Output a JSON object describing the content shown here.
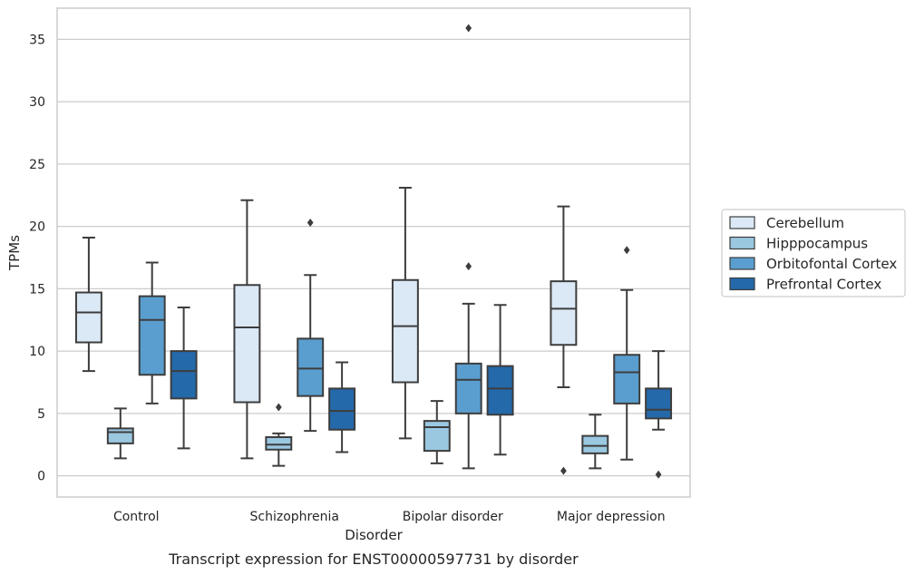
{
  "chart_data": {
    "type": "box",
    "xlabel": "Disorder",
    "ylabel": "TPMs",
    "caption": "Transcript expression for ENST00000597731 by disorder",
    "ylim": [
      -1.7,
      37.5
    ],
    "yticks": [
      0,
      5,
      10,
      15,
      20,
      25,
      30,
      35
    ],
    "grid": "horizontal",
    "legend_position": "right",
    "categories": [
      "Control",
      "Schizophrenia",
      "Bipolar disorder",
      "Major depression"
    ],
    "series": [
      {
        "name": "Cerebellum",
        "color": "#dbe9f6",
        "boxes": [
          {
            "whislo": 8.4,
            "q1": 10.7,
            "med": 13.1,
            "q3": 14.7,
            "whishi": 19.1,
            "fliers": []
          },
          {
            "whislo": 1.4,
            "q1": 5.9,
            "med": 11.9,
            "q3": 15.3,
            "whishi": 22.1,
            "fliers": []
          },
          {
            "whislo": 3.0,
            "q1": 7.5,
            "med": 12.0,
            "q3": 15.7,
            "whishi": 23.1,
            "fliers": []
          },
          {
            "whislo": 7.1,
            "q1": 10.5,
            "med": 13.4,
            "q3": 15.6,
            "whishi": 21.6,
            "fliers": [
              0.4
            ]
          }
        ]
      },
      {
        "name": "Hipppocampus",
        "color": "#9ac8e0",
        "boxes": [
          {
            "whislo": 1.4,
            "q1": 2.6,
            "med": 3.5,
            "q3": 3.8,
            "whishi": 5.4,
            "fliers": []
          },
          {
            "whislo": 0.8,
            "q1": 2.1,
            "med": 2.5,
            "q3": 3.1,
            "whishi": 3.4,
            "fliers": [
              5.5
            ]
          },
          {
            "whislo": 1.0,
            "q1": 2.0,
            "med": 3.9,
            "q3": 4.4,
            "whishi": 6.0,
            "fliers": []
          },
          {
            "whislo": 0.6,
            "q1": 1.8,
            "med": 2.4,
            "q3": 3.2,
            "whishi": 4.9,
            "fliers": []
          }
        ]
      },
      {
        "name": "Orbitofontal Cortex",
        "color": "#5a9ecf",
        "boxes": [
          {
            "whislo": 5.8,
            "q1": 8.1,
            "med": 12.5,
            "q3": 14.4,
            "whishi": 17.1,
            "fliers": []
          },
          {
            "whislo": 3.6,
            "q1": 6.4,
            "med": 8.6,
            "q3": 11.0,
            "whishi": 16.1,
            "fliers": [
              20.3
            ]
          },
          {
            "whislo": 0.6,
            "q1": 5.0,
            "med": 7.7,
            "q3": 9.0,
            "whishi": 13.8,
            "fliers": [
              16.8,
              35.9
            ]
          },
          {
            "whislo": 1.3,
            "q1": 5.8,
            "med": 8.3,
            "q3": 9.7,
            "whishi": 14.9,
            "fliers": [
              18.1
            ]
          }
        ]
      },
      {
        "name": "Prefrontal Cortex",
        "color": "#2469aa",
        "boxes": [
          {
            "whislo": 2.2,
            "q1": 6.2,
            "med": 8.4,
            "q3": 10.0,
            "whishi": 13.5,
            "fliers": []
          },
          {
            "whislo": 1.9,
            "q1": 3.7,
            "med": 5.2,
            "q3": 7.0,
            "whishi": 9.1,
            "fliers": []
          },
          {
            "whislo": 1.7,
            "q1": 4.9,
            "med": 7.0,
            "q3": 8.8,
            "whishi": 13.7,
            "fliers": []
          },
          {
            "whislo": 3.7,
            "q1": 4.6,
            "med": 5.3,
            "q3": 7.0,
            "whishi": 10.0,
            "fliers": [
              0.1
            ]
          }
        ]
      }
    ]
  }
}
